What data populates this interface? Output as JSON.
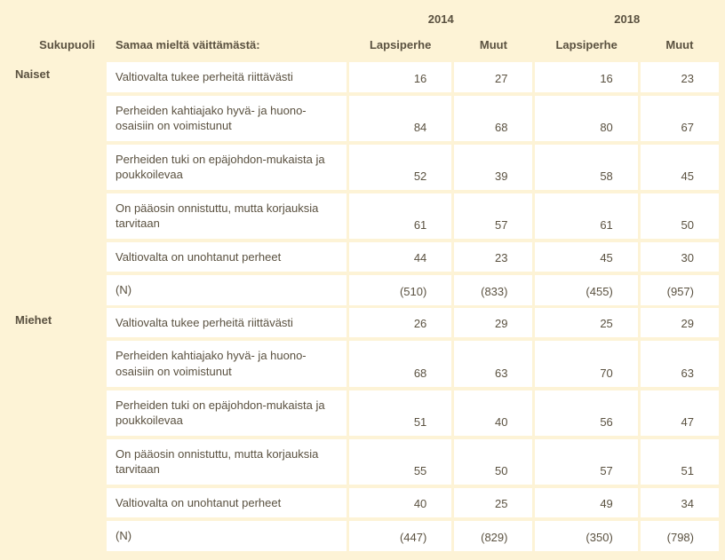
{
  "table": {
    "headers": {
      "group_col": "Sukupuoli",
      "statement_col": "Samaa mieltä väittämästä:",
      "years": [
        "2014",
        "2018"
      ],
      "subcols": [
        "Lapsiperhe",
        "Muut"
      ]
    },
    "groups": [
      {
        "label": "Naiset",
        "rows": [
          {
            "stmt": "Valtiovalta tukee perheitä riittävästi",
            "v": [
              "16",
              "27",
              "16",
              "23"
            ]
          },
          {
            "stmt": "Perheiden kahtiajako hyvä- ja huono-osaisiin on voimistunut",
            "v": [
              "84",
              "68",
              "80",
              "67"
            ]
          },
          {
            "stmt": "Perheiden tuki on epäjohdon-mukaista ja poukkoilevaa",
            "v": [
              "52",
              "39",
              "58",
              "45"
            ]
          },
          {
            "stmt": "On pääosin onnistuttu, mutta korjauksia tarvitaan",
            "v": [
              "61",
              "57",
              "61",
              "50"
            ]
          },
          {
            "stmt": "Valtiovalta on unohtanut perheet",
            "v": [
              "44",
              "23",
              "45",
              "30"
            ]
          },
          {
            "stmt": "(N)",
            "v": [
              "(510)",
              "(833)",
              "(455)",
              "(957)"
            ]
          }
        ]
      },
      {
        "label": "Miehet",
        "rows": [
          {
            "stmt": "Valtiovalta tukee perheitä riittävästi",
            "v": [
              "26",
              "29",
              "25",
              "29"
            ]
          },
          {
            "stmt": "Perheiden kahtiajako hyvä- ja huono-osaisiin on voimistunut",
            "v": [
              "68",
              "63",
              "70",
              "63"
            ]
          },
          {
            "stmt": "Perheiden tuki on epäjohdon-mukaista ja poukkoilevaa",
            "v": [
              "51",
              "40",
              "56",
              "47"
            ]
          },
          {
            "stmt": "On pääosin onnistuttu, mutta korjauksia tarvitaan",
            "v": [
              "55",
              "50",
              "57",
              "51"
            ]
          },
          {
            "stmt": "Valtiovalta on unohtanut perheet",
            "v": [
              "40",
              "25",
              "49",
              "34"
            ]
          },
          {
            "stmt": "(N)",
            "v": [
              "(447)",
              "(829)",
              "(350)",
              "(798)"
            ]
          }
        ]
      }
    ],
    "style": {
      "bg": "#fdf3d6",
      "cell_bg": "#ffffff",
      "text_color": "#5a5140",
      "font_size": 13
    }
  }
}
